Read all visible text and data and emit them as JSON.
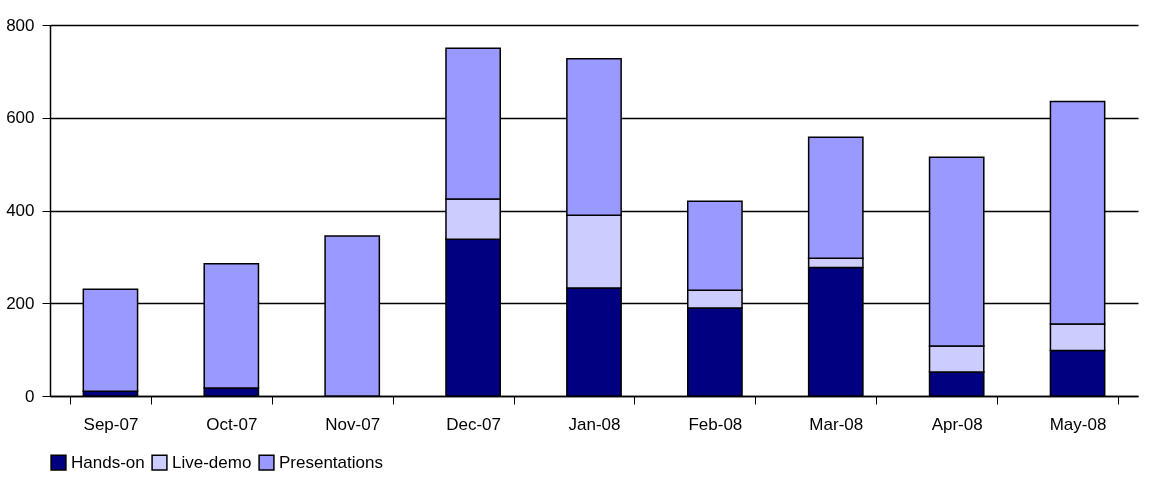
{
  "chart_data": {
    "type": "bar",
    "stacked": true,
    "categories": [
      "Sep-07",
      "Oct-07",
      "Nov-07",
      "Dec-07",
      "Jan-08",
      "Feb-08",
      "Mar-08",
      "Apr-08",
      "May-08"
    ],
    "series": [
      {
        "name": "Hands-on",
        "color": "#000080",
        "values": [
          10,
          17,
          0,
          338,
          233,
          190,
          277,
          52,
          98
        ]
      },
      {
        "name": "Live-demo",
        "color": "#ccccff",
        "values": [
          0,
          0,
          0,
          87,
          157,
          38,
          20,
          56,
          57
        ]
      },
      {
        "name": "Presentations",
        "color": "#9999ff",
        "values": [
          220,
          268,
          345,
          325,
          337,
          192,
          261,
          407,
          480
        ]
      }
    ],
    "ylim": [
      0,
      800
    ],
    "yticks": [
      0,
      200,
      400,
      600,
      800
    ],
    "grid": "y",
    "legend": "bottom"
  }
}
